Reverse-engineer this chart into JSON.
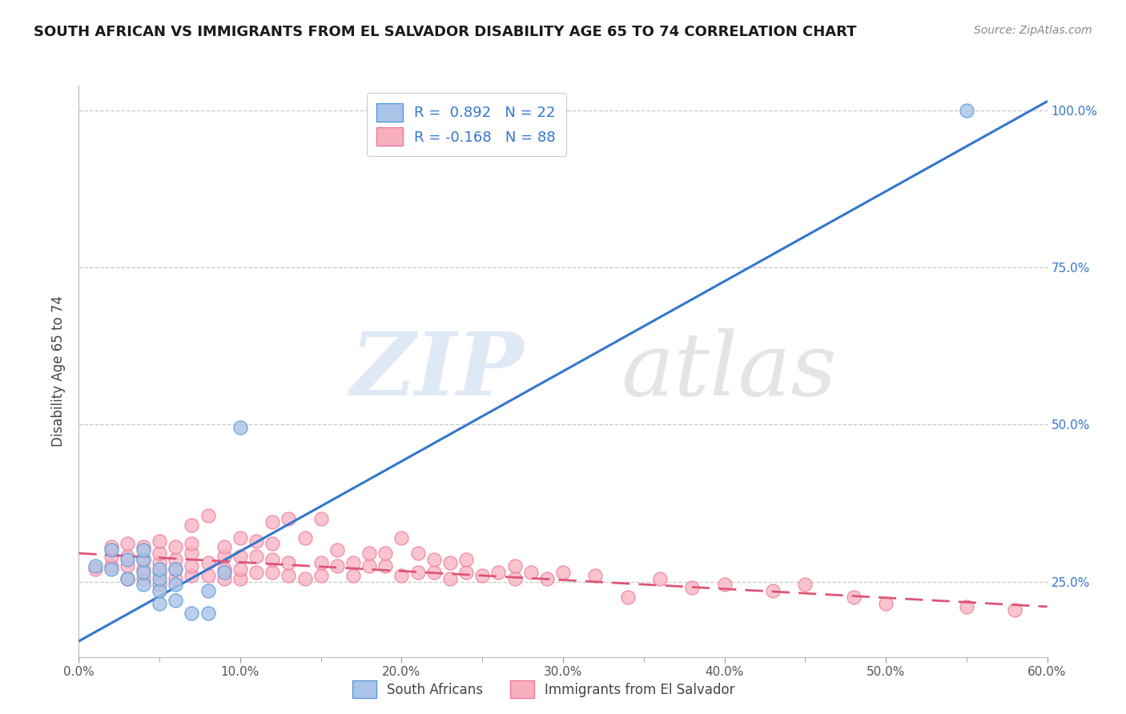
{
  "title": "SOUTH AFRICAN VS IMMIGRANTS FROM EL SALVADOR DISABILITY AGE 65 TO 74 CORRELATION CHART",
  "source": "Source: ZipAtlas.com",
  "ylabel": "Disability Age 65 to 74",
  "xlim": [
    0.0,
    0.6
  ],
  "ylim": [
    0.13,
    1.04
  ],
  "xtick_labels": [
    "0.0%",
    "",
    "10.0%",
    "",
    "20.0%",
    "",
    "30.0%",
    "",
    "40.0%",
    "",
    "50.0%",
    "",
    "60.0%"
  ],
  "xtick_values": [
    0.0,
    0.05,
    0.1,
    0.15,
    0.2,
    0.25,
    0.3,
    0.35,
    0.4,
    0.45,
    0.5,
    0.55,
    0.6
  ],
  "ytick_labels": [
    "25.0%",
    "50.0%",
    "75.0%",
    "100.0%"
  ],
  "ytick_values": [
    0.25,
    0.5,
    0.75,
    1.0
  ],
  "r_blue": 0.892,
  "n_blue": 22,
  "r_pink": -0.168,
  "n_pink": 88,
  "blue_color": "#aac4e8",
  "blue_edge_color": "#5599dd",
  "blue_line_color": "#3377cc",
  "pink_color": "#f8b0c0",
  "pink_edge_color": "#ee7799",
  "pink_line_color": "#dd5577",
  "legend_label_blue": "South Africans",
  "legend_label_pink": "Immigrants from El Salvador",
  "blue_line_x": [
    0.0,
    0.6
  ],
  "blue_line_y": [
    0.155,
    1.015
  ],
  "pink_line_x": [
    0.0,
    0.6
  ],
  "pink_line_y": [
    0.295,
    0.21
  ],
  "blue_scatter_x": [
    0.01,
    0.02,
    0.02,
    0.03,
    0.03,
    0.04,
    0.04,
    0.04,
    0.04,
    0.05,
    0.05,
    0.05,
    0.05,
    0.06,
    0.06,
    0.06,
    0.07,
    0.08,
    0.08,
    0.09,
    0.1,
    0.55
  ],
  "blue_scatter_y": [
    0.275,
    0.27,
    0.3,
    0.255,
    0.285,
    0.245,
    0.265,
    0.285,
    0.3,
    0.215,
    0.235,
    0.255,
    0.27,
    0.22,
    0.245,
    0.27,
    0.2,
    0.2,
    0.235,
    0.265,
    0.495,
    1.0
  ],
  "pink_scatter_x": [
    0.01,
    0.02,
    0.02,
    0.02,
    0.03,
    0.03,
    0.03,
    0.03,
    0.04,
    0.04,
    0.04,
    0.04,
    0.05,
    0.05,
    0.05,
    0.05,
    0.05,
    0.06,
    0.06,
    0.06,
    0.06,
    0.07,
    0.07,
    0.07,
    0.07,
    0.07,
    0.08,
    0.08,
    0.08,
    0.09,
    0.09,
    0.09,
    0.09,
    0.1,
    0.1,
    0.1,
    0.1,
    0.11,
    0.11,
    0.11,
    0.12,
    0.12,
    0.12,
    0.12,
    0.13,
    0.13,
    0.13,
    0.14,
    0.14,
    0.15,
    0.15,
    0.15,
    0.16,
    0.16,
    0.17,
    0.17,
    0.18,
    0.18,
    0.19,
    0.19,
    0.2,
    0.2,
    0.21,
    0.21,
    0.22,
    0.22,
    0.23,
    0.23,
    0.24,
    0.24,
    0.25,
    0.26,
    0.27,
    0.27,
    0.28,
    0.29,
    0.3,
    0.32,
    0.34,
    0.36,
    0.38,
    0.4,
    0.43,
    0.45,
    0.48,
    0.5,
    0.55,
    0.58
  ],
  "pink_scatter_y": [
    0.27,
    0.275,
    0.29,
    0.305,
    0.255,
    0.275,
    0.29,
    0.31,
    0.255,
    0.27,
    0.285,
    0.305,
    0.245,
    0.265,
    0.28,
    0.295,
    0.315,
    0.255,
    0.27,
    0.285,
    0.305,
    0.26,
    0.275,
    0.295,
    0.31,
    0.34,
    0.26,
    0.28,
    0.355,
    0.255,
    0.27,
    0.29,
    0.305,
    0.255,
    0.27,
    0.29,
    0.32,
    0.265,
    0.29,
    0.315,
    0.265,
    0.285,
    0.31,
    0.345,
    0.26,
    0.28,
    0.35,
    0.255,
    0.32,
    0.26,
    0.28,
    0.35,
    0.275,
    0.3,
    0.26,
    0.28,
    0.275,
    0.295,
    0.275,
    0.295,
    0.26,
    0.32,
    0.265,
    0.295,
    0.265,
    0.285,
    0.255,
    0.28,
    0.265,
    0.285,
    0.26,
    0.265,
    0.255,
    0.275,
    0.265,
    0.255,
    0.265,
    0.26,
    0.225,
    0.255,
    0.24,
    0.245,
    0.235,
    0.245,
    0.225,
    0.215,
    0.21,
    0.205
  ]
}
